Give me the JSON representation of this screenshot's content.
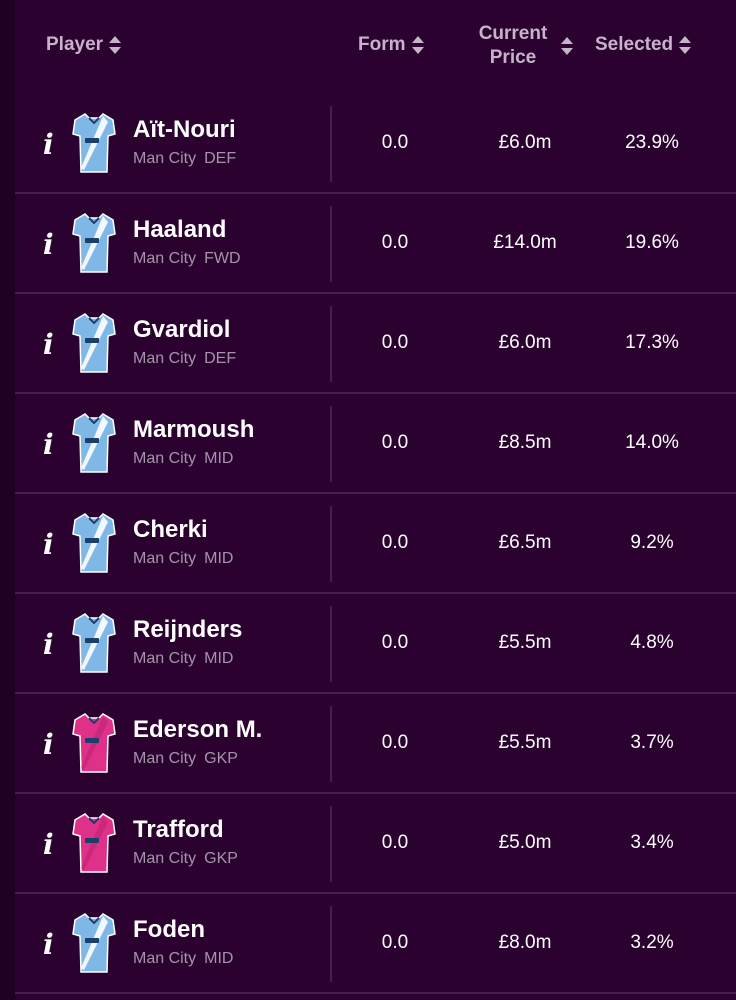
{
  "header": {
    "player_label": "Player",
    "form_label": "Form",
    "price_label": "Current Price",
    "selected_label": "Selected"
  },
  "colors": {
    "background": "#1f0124",
    "panel": "#2b0130",
    "divider": "#4a1d4f",
    "text_primary": "#ffffff",
    "text_secondary": "#a594a9",
    "header_text": "#c6b3ca",
    "city_kit": "#7fb8e6",
    "gk_kit": "#e0318a"
  },
  "players": [
    {
      "name": "Aït-Nouri",
      "team": "Man City",
      "position": "DEF",
      "form": "0.0",
      "price": "£6.0m",
      "selected": "23.9%",
      "kit": "outfield"
    },
    {
      "name": "Haaland",
      "team": "Man City",
      "position": "FWD",
      "form": "0.0",
      "price": "£14.0m",
      "selected": "19.6%",
      "kit": "outfield"
    },
    {
      "name": "Gvardiol",
      "team": "Man City",
      "position": "DEF",
      "form": "0.0",
      "price": "£6.0m",
      "selected": "17.3%",
      "kit": "outfield"
    },
    {
      "name": "Marmoush",
      "team": "Man City",
      "position": "MID",
      "form": "0.0",
      "price": "£8.5m",
      "selected": "14.0%",
      "kit": "outfield"
    },
    {
      "name": "Cherki",
      "team": "Man City",
      "position": "MID",
      "form": "0.0",
      "price": "£6.5m",
      "selected": "9.2%",
      "kit": "outfield"
    },
    {
      "name": "Reijnders",
      "team": "Man City",
      "position": "MID",
      "form": "0.0",
      "price": "£5.5m",
      "selected": "4.8%",
      "kit": "outfield"
    },
    {
      "name": "Ederson M.",
      "team": "Man City",
      "position": "GKP",
      "form": "0.0",
      "price": "£5.5m",
      "selected": "3.7%",
      "kit": "goalkeeper"
    },
    {
      "name": "Trafford",
      "team": "Man City",
      "position": "GKP",
      "form": "0.0",
      "price": "£5.0m",
      "selected": "3.4%",
      "kit": "goalkeeper"
    },
    {
      "name": "Foden",
      "team": "Man City",
      "position": "MID",
      "form": "0.0",
      "price": "£8.0m",
      "selected": "3.2%",
      "kit": "outfield"
    }
  ]
}
